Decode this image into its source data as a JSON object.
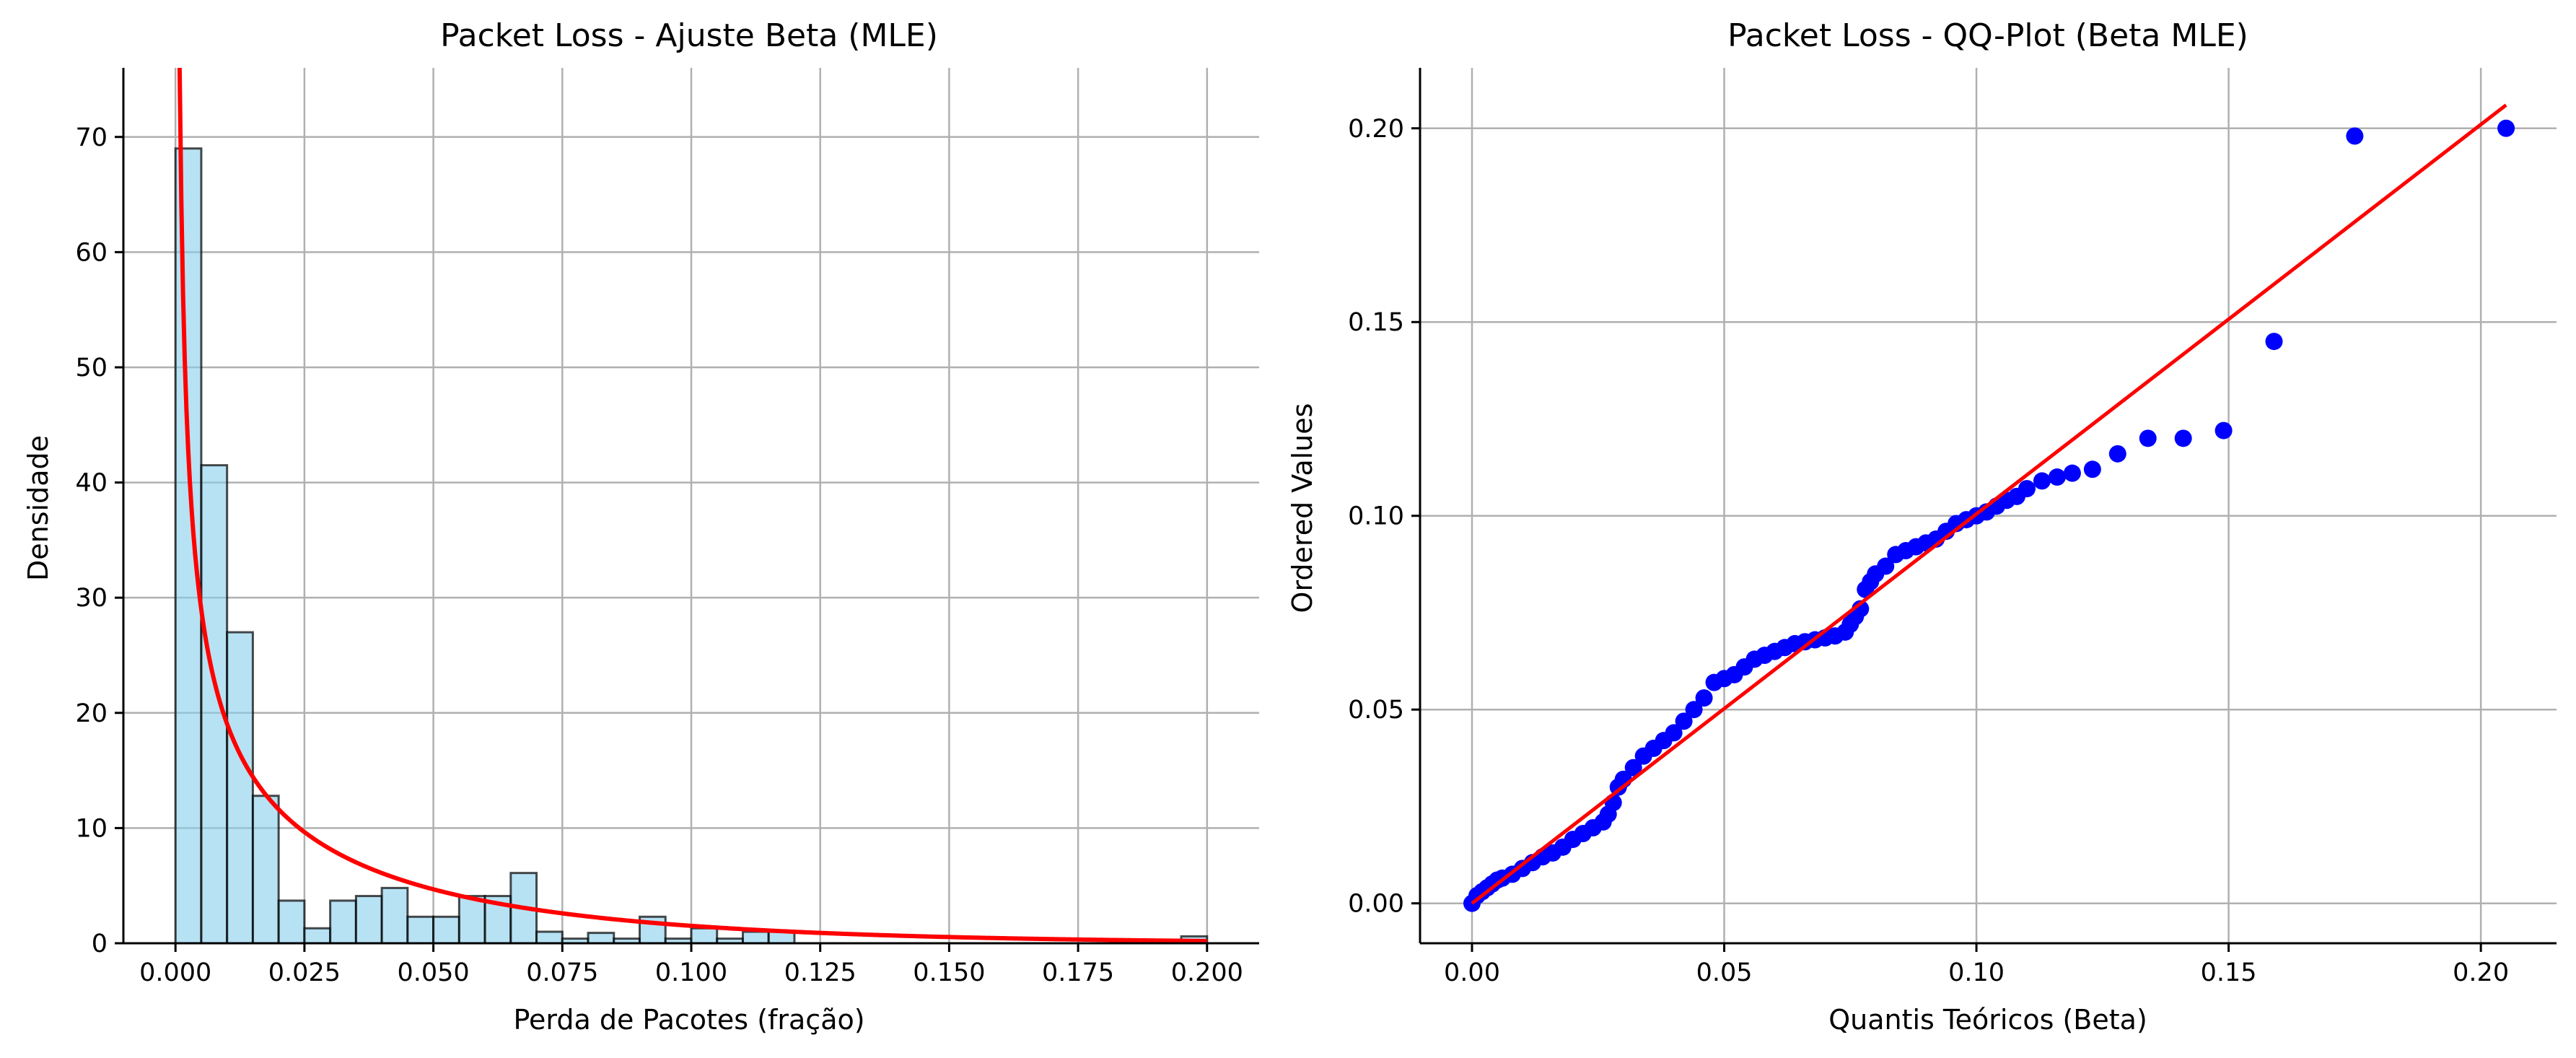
{
  "chart_data": [
    {
      "type": "bar",
      "subtype": "histogram-with-density-fit",
      "title": "Packet Loss - Ajuste Beta (MLE)",
      "xlabel": "Perda de Pacotes (fração)",
      "ylabel": "Densidade",
      "xlim": [
        -0.0101,
        0.2101
      ],
      "ylim": [
        0,
        76
      ],
      "xticks": [
        0.0,
        0.025,
        0.05,
        0.075,
        0.1,
        0.125,
        0.15,
        0.175,
        0.2
      ],
      "xtick_labels": [
        "0.000",
        "0.025",
        "0.050",
        "0.075",
        "0.100",
        "0.125",
        "0.150",
        "0.175",
        "0.200"
      ],
      "yticks": [
        0,
        10,
        20,
        30,
        40,
        50,
        60,
        70
      ],
      "ytick_labels": [
        "0",
        "10",
        "20",
        "30",
        "40",
        "50",
        "60",
        "70"
      ],
      "grid": true,
      "histogram": {
        "bin_start": 0.0,
        "bin_width": 0.005,
        "density": [
          69.0,
          41.5,
          27.0,
          12.8,
          3.7,
          1.3,
          3.7,
          4.1,
          4.8,
          2.3,
          2.3,
          4.1,
          4.1,
          6.1,
          1.0,
          0.4,
          0.9,
          0.4,
          2.3,
          0.4,
          1.3,
          0.4,
          1.0,
          1.0,
          0,
          0,
          0,
          0,
          0,
          0,
          0,
          0,
          0,
          0,
          0,
          0,
          0,
          0,
          0,
          0.6
        ],
        "color": "#87ceeb",
        "edge_color": "#000000"
      },
      "fit_curve": {
        "name": "Beta MLE",
        "alpha": 0.5,
        "beta": 15.5,
        "x_range": [
          0.0008,
          0.2
        ],
        "color": "#ff0000"
      }
    },
    {
      "type": "scatter",
      "subtype": "qq-plot",
      "title": "Packet Loss - QQ-Plot (Beta MLE)",
      "xlabel": "Quantis Teóricos (Beta)",
      "ylabel": "Ordered Values",
      "xlim": [
        -0.0103,
        0.215
      ],
      "ylim": [
        -0.0103,
        0.2156
      ],
      "xticks": [
        0.0,
        0.05,
        0.1,
        0.15,
        0.2
      ],
      "xtick_labels": [
        "0.00",
        "0.05",
        "0.10",
        "0.15",
        "0.20"
      ],
      "yticks": [
        0.0,
        0.05,
        0.1,
        0.15,
        0.2
      ],
      "ytick_labels": [
        "0.00",
        "0.05",
        "0.10",
        "0.15",
        "0.20"
      ],
      "grid": true,
      "point_color": "#0000ff",
      "line_color": "#ff0000",
      "reference_line": {
        "x": [
          0.0,
          0.205
        ],
        "y": [
          0.0,
          0.206
        ]
      },
      "points": {
        "x": [
          0.0,
          0.001,
          0.002,
          0.003,
          0.004,
          0.005,
          0.006,
          0.008,
          0.01,
          0.012,
          0.014,
          0.016,
          0.018,
          0.02,
          0.022,
          0.024,
          0.026,
          0.027,
          0.028,
          0.029,
          0.03,
          0.032,
          0.034,
          0.036,
          0.038,
          0.04,
          0.042,
          0.044,
          0.046,
          0.048,
          0.05,
          0.052,
          0.054,
          0.056,
          0.058,
          0.06,
          0.062,
          0.064,
          0.066,
          0.068,
          0.07,
          0.072,
          0.074,
          0.075,
          0.076,
          0.077,
          0.078,
          0.079,
          0.08,
          0.082,
          0.084,
          0.086,
          0.088,
          0.09,
          0.092,
          0.094,
          0.096,
          0.098,
          0.1,
          0.102,
          0.104,
          0.106,
          0.108,
          0.11,
          0.113,
          0.116,
          0.119,
          0.123,
          0.128,
          0.134,
          0.141,
          0.149,
          0.159,
          0.175,
          0.205
        ],
        "y": [
          0.0,
          0.002,
          0.003,
          0.004,
          0.005,
          0.006,
          0.0065,
          0.0075,
          0.009,
          0.0105,
          0.012,
          0.013,
          0.0145,
          0.0165,
          0.018,
          0.0195,
          0.021,
          0.023,
          0.026,
          0.03,
          0.032,
          0.035,
          0.038,
          0.04,
          0.042,
          0.044,
          0.047,
          0.05,
          0.053,
          0.057,
          0.058,
          0.059,
          0.061,
          0.063,
          0.064,
          0.065,
          0.066,
          0.067,
          0.0675,
          0.068,
          0.0685,
          0.069,
          0.07,
          0.072,
          0.074,
          0.076,
          0.081,
          0.083,
          0.085,
          0.087,
          0.09,
          0.091,
          0.092,
          0.093,
          0.094,
          0.096,
          0.098,
          0.099,
          0.1,
          0.101,
          0.1025,
          0.104,
          0.105,
          0.107,
          0.109,
          0.11,
          0.111,
          0.112,
          0.116,
          0.12,
          0.12,
          0.122,
          0.145,
          0.198,
          0.2
        ]
      }
    }
  ]
}
